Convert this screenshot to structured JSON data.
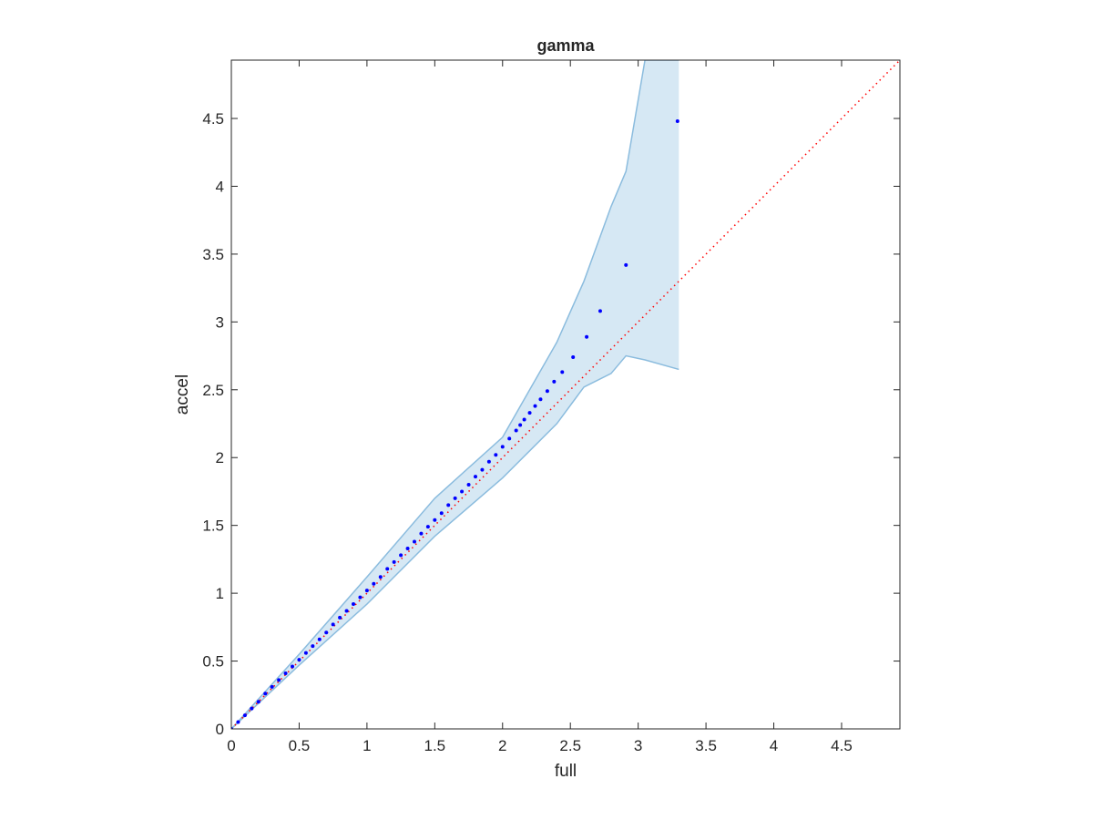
{
  "chart_data": {
    "type": "scatter",
    "title": "gamma",
    "x_label": "full",
    "y_label": "accel",
    "xlim": [
      0,
      4.93
    ],
    "ylim": [
      0,
      4.93
    ],
    "xticks": [
      0,
      0.5,
      1,
      1.5,
      2,
      2.5,
      3,
      3.5,
      4,
      4.5
    ],
    "yticks": [
      0,
      0.5,
      1,
      1.5,
      2,
      2.5,
      3,
      3.5,
      4,
      4.5
    ],
    "series": [
      {
        "color": "#0000ff",
        "x": [
          0,
          0.05,
          0.1,
          0.15,
          0.2,
          0.25,
          0.3,
          0.35,
          0.4,
          0.45,
          0.5,
          0.55,
          0.6,
          0.65,
          0.7,
          0.75,
          0.8,
          0.85,
          0.9,
          0.95,
          1,
          1.05,
          1.1,
          1.15,
          1.2,
          1.25,
          1.3,
          1.35,
          1.4,
          1.45,
          1.5,
          1.55,
          1.6,
          1.65,
          1.7,
          1.75,
          1.8,
          1.85,
          1.9,
          1.95,
          2,
          2.05,
          2.1,
          2.13,
          2.16,
          2.2,
          2.24,
          2.28,
          2.33,
          2.38,
          2.44,
          2.52,
          2.62,
          2.72,
          2.91,
          3.29
        ],
        "values": [
          0,
          0.05,
          0.1,
          0.15,
          0.2,
          0.26,
          0.31,
          0.36,
          0.41,
          0.46,
          0.51,
          0.56,
          0.61,
          0.66,
          0.71,
          0.77,
          0.82,
          0.87,
          0.92,
          0.97,
          1.02,
          1.07,
          1.12,
          1.18,
          1.23,
          1.28,
          1.33,
          1.38,
          1.44,
          1.49,
          1.54,
          1.59,
          1.65,
          1.7,
          1.75,
          1.8,
          1.86,
          1.91,
          1.97,
          2.02,
          2.08,
          2.14,
          2.2,
          2.24,
          2.28,
          2.33,
          2.38,
          2.43,
          2.49,
          2.56,
          2.63,
          2.74,
          2.89,
          3.08,
          3.42,
          4.48
        ]
      }
    ],
    "band": {
      "color": "#d6e8f4",
      "edge_color": "#8bbcde",
      "x": [
        0,
        0.5,
        1,
        1.5,
        2,
        2.2,
        2.4,
        2.6,
        2.8,
        2.91,
        3.05,
        3.3
      ],
      "upper": [
        0,
        0.55,
        1.12,
        1.7,
        2.15,
        2.5,
        2.85,
        3.3,
        3.85,
        4.11,
        4.93,
        4.93
      ],
      "lower": [
        0,
        0.47,
        0.92,
        1.42,
        1.85,
        2.05,
        2.25,
        2.52,
        2.62,
        2.75,
        2.72,
        2.65
      ]
    },
    "reference": {
      "color": "#ff0000",
      "x": [
        0,
        4.93
      ],
      "y": [
        0,
        4.93
      ]
    }
  }
}
